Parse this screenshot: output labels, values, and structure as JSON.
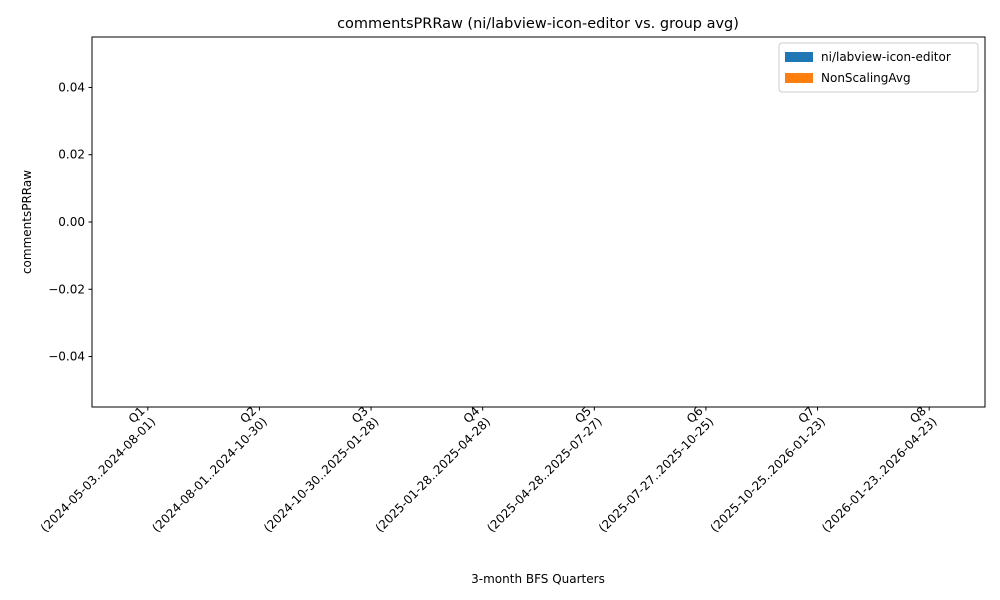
{
  "chart_data": {
    "type": "bar",
    "title": "commentsPRRaw (ni/labview-icon-editor vs. group avg)",
    "xlabel": "3-month BFS Quarters",
    "ylabel": "commentsPRRaw",
    "categories": [
      {
        "q": "Q1",
        "range": "(2024-05-03..2024-08-01)"
      },
      {
        "q": "Q2",
        "range": "(2024-08-01..2024-10-30)"
      },
      {
        "q": "Q3",
        "range": "(2024-10-30..2025-01-28)"
      },
      {
        "q": "Q4",
        "range": "(2025-01-28..2025-04-28)"
      },
      {
        "q": "Q5",
        "range": "(2025-04-28..2025-07-27)"
      },
      {
        "q": "Q6",
        "range": "(2025-07-27..2025-10-25)"
      },
      {
        "q": "Q7",
        "range": "(2025-10-25..2026-01-23)"
      },
      {
        "q": "Q8",
        "range": "(2026-01-23..2026-04-23)"
      }
    ],
    "series": [
      {
        "name": "ni/labview-icon-editor",
        "color": "#1f77b4",
        "values": [
          0,
          0,
          0,
          0,
          0,
          0,
          0,
          0
        ]
      },
      {
        "name": "NonScalingAvg",
        "color": "#ff7f0e",
        "values": [
          0,
          0,
          0,
          0,
          0,
          0,
          0,
          0
        ]
      }
    ],
    "ylim": [
      -0.055,
      0.055
    ],
    "yticks": [
      -0.04,
      -0.02,
      0.0,
      0.02,
      0.04
    ],
    "ytick_labels": [
      "−0.04",
      "−0.02",
      "0.00",
      "0.02",
      "0.04"
    ],
    "grid": false,
    "legend": "top-right"
  }
}
